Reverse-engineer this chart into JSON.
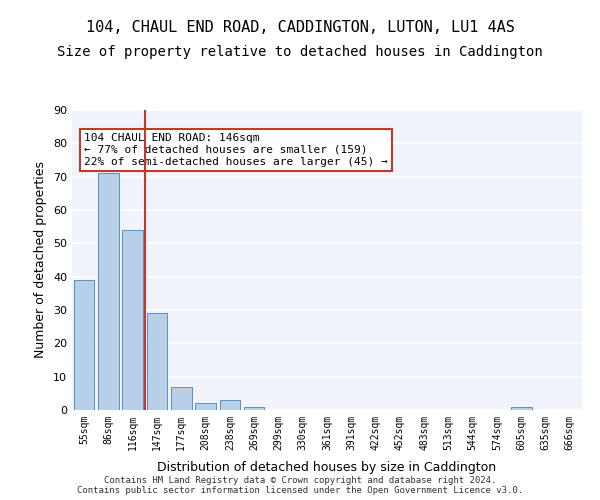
{
  "title": "104, CHAUL END ROAD, CADDINGTON, LUTON, LU1 4AS",
  "subtitle": "Size of property relative to detached houses in Caddington",
  "xlabel": "Distribution of detached houses by size in Caddington",
  "ylabel": "Number of detached properties",
  "categories": [
    "55sqm",
    "86sqm",
    "116sqm",
    "147sqm",
    "177sqm",
    "208sqm",
    "238sqm",
    "269sqm",
    "299sqm",
    "330sqm",
    "361sqm",
    "391sqm",
    "422sqm",
    "452sqm",
    "483sqm",
    "513sqm",
    "544sqm",
    "574sqm",
    "605sqm",
    "635sqm",
    "666sqm"
  ],
  "values": [
    39,
    71,
    54,
    29,
    7,
    2,
    3,
    1,
    0,
    0,
    0,
    0,
    0,
    0,
    0,
    0,
    0,
    0,
    1,
    0,
    0
  ],
  "bar_color": "#b8cfe8",
  "bar_edge_color": "#5a8fc0",
  "property_line_x": 3,
  "property_line_color": "#c0392b",
  "annotation_text": "104 CHAUL END ROAD: 146sqm\n← 77% of detached houses are smaller (159)\n22% of semi-detached houses are larger (45) →",
  "annotation_box_color": "#c0392b",
  "ylim": [
    0,
    90
  ],
  "yticks": [
    0,
    10,
    20,
    30,
    40,
    50,
    60,
    70,
    80,
    90
  ],
  "background_color": "#f0f4fa",
  "grid_color": "#ffffff",
  "footer_text": "Contains HM Land Registry data © Crown copyright and database right 2024.\nContains public sector information licensed under the Open Government Licence v3.0.",
  "title_fontsize": 11,
  "subtitle_fontsize": 10,
  "xlabel_fontsize": 9,
  "ylabel_fontsize": 9,
  "annotation_fontsize": 8
}
